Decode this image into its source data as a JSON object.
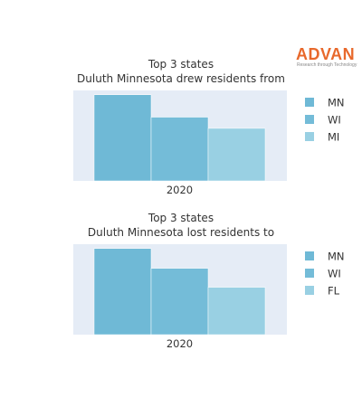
{
  "logo": {
    "name": "ADVAN",
    "tagline": "Research through Technology",
    "color": "#e8692c"
  },
  "chart_data": [
    {
      "type": "bar",
      "title": [
        "Top 3 states",
        "Duluth Minnesota drew residents from"
      ],
      "categories": [
        "2020"
      ],
      "series": [
        {
          "name": "MN",
          "values": [
            100
          ],
          "color": "#6fb9d6"
        },
        {
          "name": "WI",
          "values": [
            74
          ],
          "color": "#74bcd8"
        },
        {
          "name": "MI",
          "values": [
            61
          ],
          "color": "#99d0e3"
        }
      ],
      "ylim": [
        0,
        105
      ],
      "grid": false,
      "legend": "right",
      "plot_bg": "#e5ecf6"
    },
    {
      "type": "bar",
      "title": [
        "Top 3 states",
        "Duluth Minnesota lost residents to"
      ],
      "categories": [
        "2020"
      ],
      "series": [
        {
          "name": "MN",
          "values": [
            100
          ],
          "color": "#6fb9d6"
        },
        {
          "name": "WI",
          "values": [
            77
          ],
          "color": "#74bcd8"
        },
        {
          "name": "FL",
          "values": [
            55
          ],
          "color": "#99d0e3"
        }
      ],
      "ylim": [
        0,
        105
      ],
      "grid": false,
      "legend": "right",
      "plot_bg": "#e5ecf6"
    }
  ]
}
